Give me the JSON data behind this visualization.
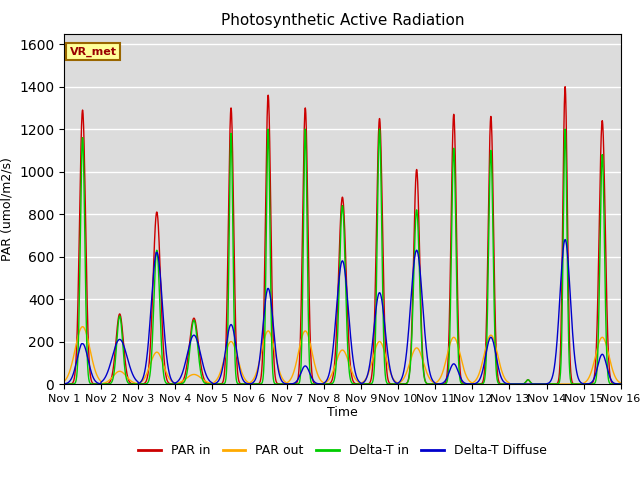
{
  "title": "Photosynthetic Active Radiation",
  "ylabel": "PAR (umol/m2/s)",
  "xlabel": "Time",
  "xlim_days": [
    0,
    15
  ],
  "ylim": [
    0,
    1650
  ],
  "yticks": [
    0,
    200,
    400,
    600,
    800,
    1000,
    1200,
    1400,
    1600
  ],
  "xtick_positions": [
    0,
    1,
    2,
    3,
    4,
    5,
    6,
    7,
    8,
    9,
    10,
    11,
    12,
    13,
    14,
    15
  ],
  "xtick_labels": [
    "Nov 1",
    "Nov 2",
    "Nov 3",
    "Nov 4",
    "Nov 5",
    "Nov 6",
    "Nov 7",
    "Nov 8",
    "Nov 9",
    "Nov 10",
    "Nov 11",
    "Nov 12",
    "Nov 13",
    "Nov 14",
    "Nov 15",
    "Nov 16"
  ],
  "colors": {
    "par_in": "#cc0000",
    "par_out": "#ffaa00",
    "delta_t_in": "#00cc00",
    "delta_t_diffuse": "#0000cc"
  },
  "legend_labels": [
    "PAR in",
    "PAR out",
    "Delta-T in",
    "Delta-T Diffuse"
  ],
  "background_color": "#dcdcdc",
  "annotation_text": "VR_met",
  "annotation_color": "#990000",
  "annotation_bg": "#ffff99",
  "annotation_border": "#996600",
  "par_in_peaks": [
    1290,
    330,
    810,
    310,
    1300,
    1360,
    1300,
    880,
    1250,
    1010,
    1270,
    1260,
    20,
    1400,
    1240
  ],
  "par_out_peaks": [
    270,
    60,
    150,
    45,
    200,
    250,
    250,
    160,
    200,
    170,
    220,
    230,
    0,
    0,
    220
  ],
  "delta_t_in_peaks": [
    1160,
    320,
    630,
    300,
    1180,
    1200,
    1200,
    840,
    1200,
    820,
    1110,
    1100,
    20,
    1200,
    1080
  ],
  "delta_t_diff_peaks": [
    190,
    210,
    620,
    230,
    280,
    450,
    85,
    580,
    430,
    630,
    95,
    220,
    0,
    680,
    140
  ],
  "par_in_widths": [
    0.08,
    0.1,
    0.1,
    0.12,
    0.07,
    0.07,
    0.07,
    0.1,
    0.08,
    0.08,
    0.07,
    0.07,
    0.05,
    0.06,
    0.08
  ],
  "par_out_widths": [
    0.2,
    0.18,
    0.18,
    0.2,
    0.18,
    0.18,
    0.18,
    0.18,
    0.18,
    0.18,
    0.18,
    0.18,
    0.05,
    0.05,
    0.18
  ],
  "dt_in_widths": [
    0.06,
    0.08,
    0.08,
    0.1,
    0.05,
    0.05,
    0.05,
    0.08,
    0.06,
    0.08,
    0.06,
    0.06,
    0.05,
    0.05,
    0.06
  ],
  "dt_diff_widths": [
    0.15,
    0.2,
    0.15,
    0.18,
    0.14,
    0.14,
    0.12,
    0.16,
    0.15,
    0.16,
    0.12,
    0.14,
    0.05,
    0.14,
    0.12
  ]
}
